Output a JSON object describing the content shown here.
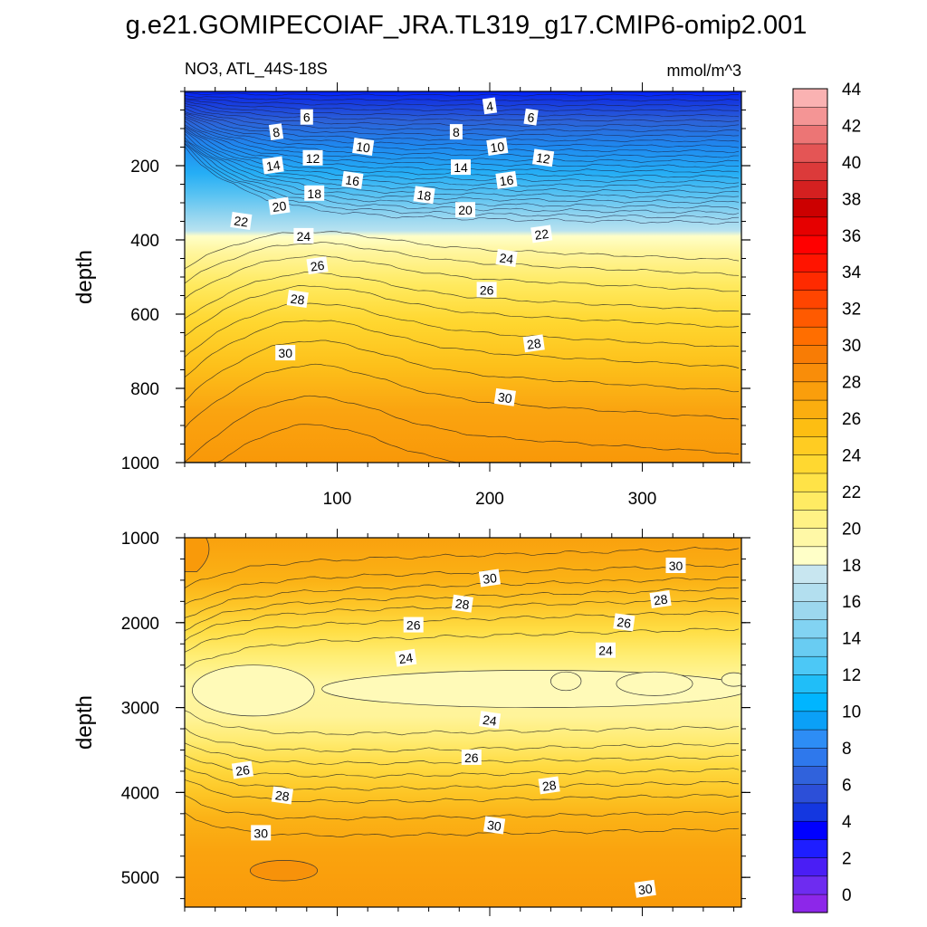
{
  "title": "g.e21.GOMIPECOIAF_JRA.TL319_g17.CMIP6-omip2.001",
  "chart_data": [
    {
      "type": "contour",
      "panel": "upper",
      "left_label": "NO3, ATL_44S-18S",
      "right_label": "mmol/m^3",
      "ylabel": "depth",
      "xlabel": "",
      "xlim": [
        0,
        365
      ],
      "ylim": [
        1000,
        0
      ],
      "x_ticks": [
        100,
        200,
        300
      ],
      "y_ticks": [
        200,
        400,
        600,
        800,
        1000
      ],
      "grid": false,
      "contour_labels": [
        {
          "text": "4",
          "x": 200,
          "y": 40
        },
        {
          "text": "6",
          "x": 80,
          "y": 70
        },
        {
          "text": "6",
          "x": 227,
          "y": 70
        },
        {
          "text": "8",
          "x": 60,
          "y": 110
        },
        {
          "text": "8",
          "x": 178,
          "y": 110
        },
        {
          "text": "10",
          "x": 117,
          "y": 150
        },
        {
          "text": "10",
          "x": 205,
          "y": 150
        },
        {
          "text": "12",
          "x": 84,
          "y": 180
        },
        {
          "text": "12",
          "x": 235,
          "y": 180
        },
        {
          "text": "14",
          "x": 58,
          "y": 200
        },
        {
          "text": "14",
          "x": 181,
          "y": 205
        },
        {
          "text": "16",
          "x": 110,
          "y": 240
        },
        {
          "text": "16",
          "x": 211,
          "y": 240
        },
        {
          "text": "18",
          "x": 85,
          "y": 275
        },
        {
          "text": "18",
          "x": 157,
          "y": 280
        },
        {
          "text": "20",
          "x": 62,
          "y": 310
        },
        {
          "text": "20",
          "x": 184,
          "y": 320
        },
        {
          "text": "22",
          "x": 37,
          "y": 350
        },
        {
          "text": "22",
          "x": 234,
          "y": 385
        },
        {
          "text": "24",
          "x": 78,
          "y": 390
        },
        {
          "text": "24",
          "x": 211,
          "y": 450
        },
        {
          "text": "26",
          "x": 87,
          "y": 470
        },
        {
          "text": "26",
          "x": 198,
          "y": 535
        },
        {
          "text": "28",
          "x": 74,
          "y": 560
        },
        {
          "text": "28",
          "x": 229,
          "y": 680
        },
        {
          "text": "30",
          "x": 66,
          "y": 705
        },
        {
          "text": "30",
          "x": 210,
          "y": 825
        }
      ]
    },
    {
      "type": "contour",
      "panel": "lower",
      "ylabel": "depth",
      "xlabel": "",
      "xlim": [
        0,
        365
      ],
      "ylim": [
        5350,
        1000
      ],
      "y_ticks": [
        1000,
        2000,
        3000,
        4000,
        5000
      ],
      "grid": false,
      "contour_labels": [
        {
          "text": "30",
          "x": 200,
          "y": 1480
        },
        {
          "text": "30",
          "x": 322,
          "y": 1330
        },
        {
          "text": "28",
          "x": 182,
          "y": 1780
        },
        {
          "text": "28",
          "x": 312,
          "y": 1730
        },
        {
          "text": "26",
          "x": 150,
          "y": 2030
        },
        {
          "text": "26",
          "x": 288,
          "y": 2000
        },
        {
          "text": "24",
          "x": 145,
          "y": 2420
        },
        {
          "text": "24",
          "x": 276,
          "y": 2330
        },
        {
          "text": "24",
          "x": 200,
          "y": 3150
        },
        {
          "text": "26",
          "x": 38,
          "y": 3740
        },
        {
          "text": "26",
          "x": 188,
          "y": 3590
        },
        {
          "text": "28",
          "x": 64,
          "y": 4040
        },
        {
          "text": "28",
          "x": 239,
          "y": 3920
        },
        {
          "text": "30",
          "x": 50,
          "y": 4480
        },
        {
          "text": "30",
          "x": 203,
          "y": 4390
        },
        {
          "text": "30",
          "x": 302,
          "y": 5140
        }
      ]
    },
    {
      "type": "colorbar",
      "levels": [
        0,
        2,
        4,
        6,
        8,
        10,
        12,
        14,
        16,
        18,
        20,
        22,
        24,
        26,
        28,
        30,
        32,
        34,
        36,
        38,
        40,
        42,
        44
      ],
      "tick_labels": [
        "0",
        "2",
        "4",
        "6",
        "8",
        "10",
        "12",
        "14",
        "16",
        "18",
        "20",
        "22",
        "24",
        "26",
        "28",
        "30",
        "32",
        "34",
        "36",
        "38",
        "40",
        "42",
        "44"
      ],
      "colors": [
        "#8D27E9",
        "#6E2CF0",
        "#4A1EF5",
        "#1E1EFF",
        "#0000FF",
        "#1437E0",
        "#2C4FD8",
        "#3062DC",
        "#2E78EC",
        "#2D8DF5",
        "#0BA0F7",
        "#00B5FF",
        "#20BEF8",
        "#4CC8F6",
        "#69CCF2",
        "#82D3F2",
        "#9CD7EE",
        "#B3DFEF",
        "#C8E6F0",
        "#FFFFC8",
        "#FFF8A6",
        "#FFF285",
        "#FFEB63",
        "#FFE347",
        "#FFD830",
        "#FFCC22",
        "#FDBE12",
        "#FBAE0F",
        "#FA9E0C",
        "#F98D09",
        "#F87C05",
        "#FF6E00",
        "#FF5A00",
        "#FF4500",
        "#FF2A00",
        "#FF1400",
        "#FF0000",
        "#E60000",
        "#CC0000",
        "#D42020",
        "#DC3A3A",
        "#E45555",
        "#EC7575",
        "#F49595",
        "#FAB2B2"
      ]
    }
  ],
  "palette": {
    "upper": [
      {
        "d": 0,
        "c": "#0022FF"
      },
      {
        "d": 25,
        "c": "#1437E0"
      },
      {
        "d": 80,
        "c": "#2C62D8"
      },
      {
        "d": 150,
        "c": "#1E8AF0"
      },
      {
        "d": 220,
        "c": "#25AEF5"
      },
      {
        "d": 280,
        "c": "#5AC3F2"
      },
      {
        "d": 330,
        "c": "#8ED3F0"
      },
      {
        "d": 375,
        "c": "#B8E2F0"
      },
      {
        "d": 390,
        "c": "#FFFFC8"
      },
      {
        "d": 430,
        "c": "#FFF6A0"
      },
      {
        "d": 520,
        "c": "#FFEA60"
      },
      {
        "d": 620,
        "c": "#FFD730"
      },
      {
        "d": 740,
        "c": "#FDC01A"
      },
      {
        "d": 860,
        "c": "#FAA410"
      },
      {
        "d": 1000,
        "c": "#F99808"
      }
    ],
    "lower": [
      {
        "d": 1000,
        "c": "#F9A10E"
      },
      {
        "d": 1500,
        "c": "#FBB215"
      },
      {
        "d": 1800,
        "c": "#FDC628"
      },
      {
        "d": 2100,
        "c": "#FFDE45"
      },
      {
        "d": 2400,
        "c": "#FFEE75"
      },
      {
        "d": 2700,
        "c": "#FFF6A0"
      },
      {
        "d": 3100,
        "c": "#FFF49A"
      },
      {
        "d": 3400,
        "c": "#FFEB70"
      },
      {
        "d": 3700,
        "c": "#FFDA40"
      },
      {
        "d": 4000,
        "c": "#FDC626"
      },
      {
        "d": 4300,
        "c": "#FBB216"
      },
      {
        "d": 4700,
        "c": "#FAA30E"
      },
      {
        "d": 5350,
        "c": "#F99A0A"
      }
    ]
  }
}
